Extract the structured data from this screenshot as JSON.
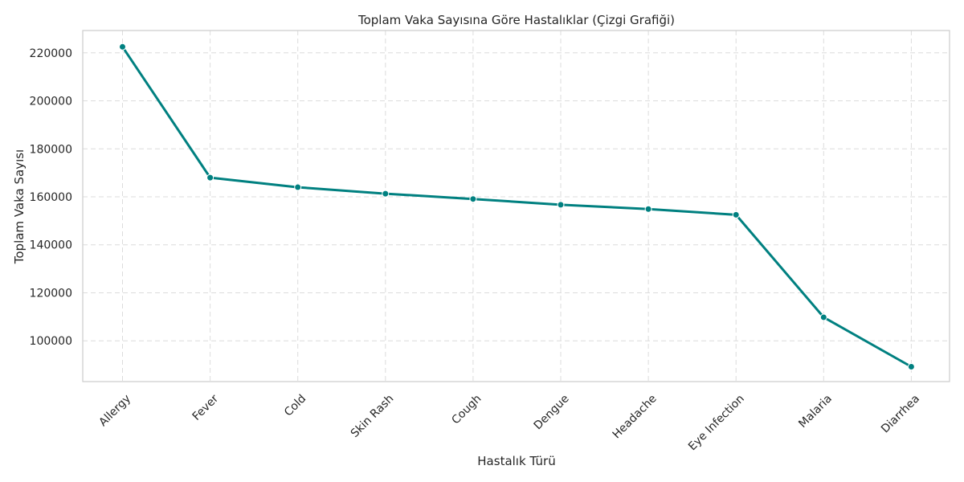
{
  "chart_data": {
    "type": "line",
    "title": "Toplam Vaka Sayısına Göre Hastalıklar (Çizgi Grafiği)",
    "xlabel": "Hastalık Türü",
    "ylabel": "Toplam Vaka Sayısı",
    "categories": [
      "Allergy",
      "Fever",
      "Cold",
      "Skin Rash",
      "Cough",
      "Dengue",
      "Headache",
      "Eye Infection",
      "Malaria",
      "Diarrhea"
    ],
    "series": [
      {
        "values": [
          222500,
          168000,
          164000,
          161300,
          159100,
          156700,
          154900,
          152500,
          109800,
          89200
        ],
        "color": "#008080"
      }
    ],
    "ylim": [
      83000,
      229300
    ],
    "yticks": [
      100000,
      120000,
      140000,
      160000,
      180000,
      200000,
      220000
    ],
    "grid": true,
    "x_tick_rotation": 45
  }
}
